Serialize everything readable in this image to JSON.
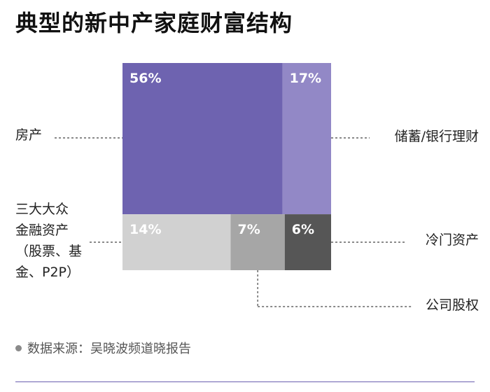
{
  "chart_data": {
    "type": "treemap",
    "title": "典型的新中产家庭财富结构",
    "segments": [
      {
        "label": "房产",
        "value": 56,
        "value_label": "56%",
        "color": "#6e63b0"
      },
      {
        "label": "储蓄/银行理财",
        "value": 17,
        "value_label": "17%",
        "color": "#9288c6"
      },
      {
        "label": "三大大众金融资产（股票、基金、P2P）",
        "value": 14,
        "value_label": "14%",
        "color": "#d1d1d1"
      },
      {
        "label": "公司股权",
        "value": 7,
        "value_label": "7%",
        "color": "#a6a6a6"
      },
      {
        "label": "冷门资产",
        "value": 6,
        "value_label": "6%",
        "color": "#565656"
      }
    ]
  },
  "labels": {
    "property": "房产",
    "savings": "储蓄/银行理财",
    "mass_assets_lines": [
      "三大大众",
      "金融资产",
      "（股票、基",
      "金、P2P）"
    ],
    "niche": "冷门资产",
    "equity": "公司股权"
  },
  "source": "数据来源：吴晓波频道晓报告",
  "colors": {
    "leader": "#444444",
    "rule": "#6a5fb0"
  }
}
